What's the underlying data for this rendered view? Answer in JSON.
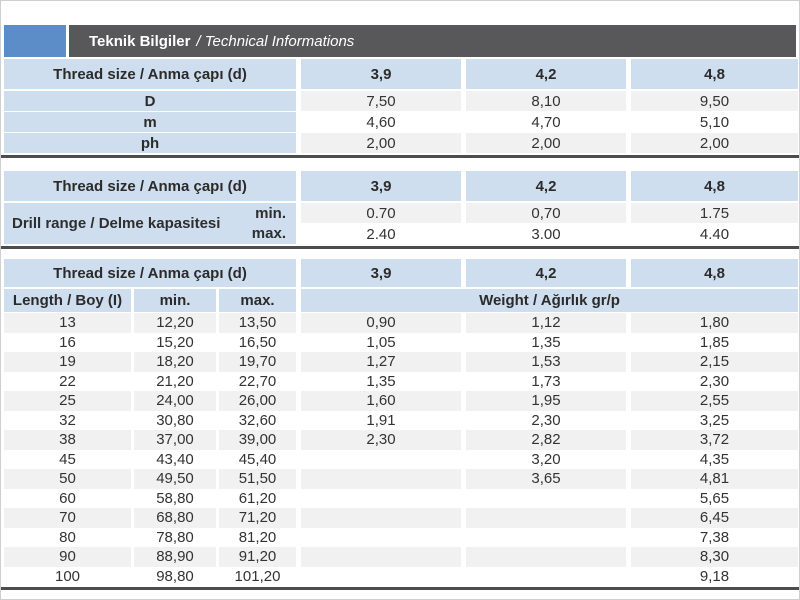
{
  "header": {
    "title_bold": "Teknik Bilgiler",
    "title_italic": "/ Technical Informations"
  },
  "colors": {
    "accent_blue": "#5c8dc9",
    "bar_gray": "#58585a",
    "cell_blue": "#cfdeef",
    "stripe_gray": "#f1f1f1",
    "rule_dark": "#4d4d4d"
  },
  "table1": {
    "header": [
      "Thread size / Anma çapı (d)",
      "3,9",
      "4,2",
      "4,8"
    ],
    "rows": [
      {
        "label": "D",
        "values": [
          "7,50",
          "8,10",
          "9,50"
        ]
      },
      {
        "label": "m",
        "values": [
          "4,60",
          "4,70",
          "5,10"
        ]
      },
      {
        "label": "ph",
        "values": [
          "2,00",
          "2,00",
          "2,00"
        ]
      }
    ]
  },
  "table2": {
    "header": [
      "Thread size / Anma çapı (d)",
      "3,9",
      "4,2",
      "4,8"
    ],
    "label": "Drill range / Delme kapasitesi",
    "min_label": "min.",
    "max_label": "max.",
    "min_values": [
      "0.70",
      "0,70",
      "1.75"
    ],
    "max_values": [
      "2.40",
      "3.00",
      "4.40"
    ]
  },
  "table3": {
    "header": [
      "Thread size / Anma çapı (d)",
      "3,9",
      "4,2",
      "4,8"
    ],
    "subheader": {
      "length": "Length / Boy (I)",
      "min": "min.",
      "max": "max.",
      "weight": "Weight / Ağırlık gr/p"
    },
    "rows": [
      {
        "length": "13",
        "min": "12,20",
        "max": "13,50",
        "w": [
          "0,90",
          "1,12",
          "1,80"
        ]
      },
      {
        "length": "16",
        "min": "15,20",
        "max": "16,50",
        "w": [
          "1,05",
          "1,35",
          "1,85"
        ]
      },
      {
        "length": "19",
        "min": "18,20",
        "max": "19,70",
        "w": [
          "1,27",
          "1,53",
          "2,15"
        ]
      },
      {
        "length": "22",
        "min": "21,20",
        "max": "22,70",
        "w": [
          "1,35",
          "1,73",
          "2,30"
        ]
      },
      {
        "length": "25",
        "min": "24,00",
        "max": "26,00",
        "w": [
          "1,60",
          "1,95",
          "2,55"
        ]
      },
      {
        "length": "32",
        "min": "30,80",
        "max": "32,60",
        "w": [
          "1,91",
          "2,30",
          "3,25"
        ]
      },
      {
        "length": "38",
        "min": "37,00",
        "max": "39,00",
        "w": [
          "2,30",
          "2,82",
          "3,72"
        ]
      },
      {
        "length": "45",
        "min": "43,40",
        "max": "45,40",
        "w": [
          "",
          "3,20",
          "4,35"
        ]
      },
      {
        "length": "50",
        "min": "49,50",
        "max": "51,50",
        "w": [
          "",
          "3,65",
          "4,81"
        ]
      },
      {
        "length": "60",
        "min": "58,80",
        "max": "61,20",
        "w": [
          "",
          "",
          "5,65"
        ]
      },
      {
        "length": "70",
        "min": "68,80",
        "max": "71,20",
        "w": [
          "",
          "",
          "6,45"
        ]
      },
      {
        "length": "80",
        "min": "78,80",
        "max": "81,20",
        "w": [
          "",
          "",
          "7,38"
        ]
      },
      {
        "length": "90",
        "min": "88,90",
        "max": "91,20",
        "w": [
          "",
          "",
          "8,30"
        ]
      },
      {
        "length": "100",
        "min": "98,80",
        "max": "101,20",
        "w": [
          "",
          "",
          "9,18"
        ]
      }
    ]
  }
}
